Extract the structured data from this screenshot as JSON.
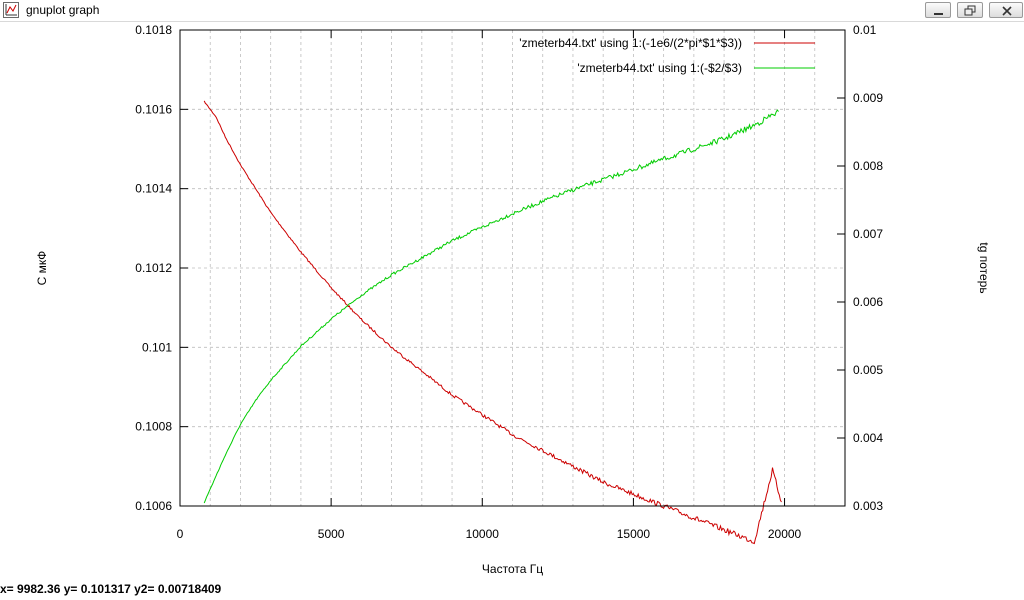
{
  "window": {
    "title": "gnuplot graph",
    "icon": "gnuplot-app-icon",
    "buttons": [
      "minimize-icon",
      "restore-icon",
      "close-icon"
    ]
  },
  "status_bar": {
    "text": "x= 9982.36 y= 0.101317 y2= 0.00718409"
  },
  "chart_data": {
    "type": "line",
    "title": "",
    "xlabel": "Частота Гц",
    "ylabel": "С мкФ",
    "y2label": "tg потерь",
    "xlim": [
      0,
      22000
    ],
    "ylim": [
      0.1006,
      0.1018
    ],
    "y2lim": [
      0.003,
      0.01
    ],
    "x_ticks": [
      0,
      5000,
      10000,
      15000,
      20000
    ],
    "x_tick_labels": [
      "0",
      "5000",
      "10000",
      "15000",
      "20000"
    ],
    "y_ticks": [
      0.1006,
      0.1008,
      0.101,
      0.1012,
      0.1014,
      0.1016,
      0.1018
    ],
    "y_tick_labels": [
      "0.1006",
      "0.1008",
      "0.101",
      "0.1012",
      "0.1014",
      "0.1016",
      "0.1018"
    ],
    "y2_ticks": [
      0.003,
      0.004,
      0.005,
      0.006,
      0.007,
      0.008,
      0.009,
      0.01
    ],
    "y2_tick_labels": [
      "0.003",
      "0.004",
      "0.005",
      "0.006",
      "0.007",
      "0.008",
      "0.009",
      "0.01"
    ],
    "grid": true,
    "legend_position": "top-right",
    "series": [
      {
        "name": "'zmeterb44.txt' using 1:(-1e6/(2*pi*$1*$3))",
        "axis": "y",
        "color": "#cc0000",
        "x": [
          800,
          1200,
          1500,
          2000,
          2500,
          3000,
          4000,
          5000,
          6000,
          7000,
          8000,
          9000,
          10000,
          11000,
          12000,
          13000,
          14000,
          15000,
          16000,
          17000,
          18000,
          19000,
          19600,
          19900
        ],
        "y": [
          0.10162,
          0.10158,
          0.10153,
          0.10146,
          0.1014,
          0.10134,
          0.10124,
          0.10115,
          0.10107,
          0.101,
          0.10094,
          0.10088,
          0.10083,
          0.10078,
          0.10074,
          0.1007,
          0.10066,
          0.10063,
          0.1006,
          0.10057,
          0.10054,
          0.10051,
          0.10069,
          0.10061
        ]
      },
      {
        "name": "'zmeterb44.txt' using 1:(-$2/$3)",
        "axis": "y2",
        "color": "#00cc00",
        "x": [
          800,
          1000,
          1500,
          2000,
          2500,
          3000,
          4000,
          5000,
          6000,
          7000,
          8000,
          9000,
          10000,
          11000,
          12000,
          13000,
          14000,
          15000,
          16000,
          17000,
          18000,
          19000,
          19800
        ],
        "y": [
          0.00305,
          0.00325,
          0.00375,
          0.0042,
          0.00455,
          0.00485,
          0.00535,
          0.00575,
          0.0061,
          0.0064,
          0.00665,
          0.0069,
          0.0071,
          0.0073,
          0.00748,
          0.00765,
          0.0078,
          0.00795,
          0.0081,
          0.00825,
          0.0084,
          0.0086,
          0.0088
        ]
      }
    ]
  }
}
